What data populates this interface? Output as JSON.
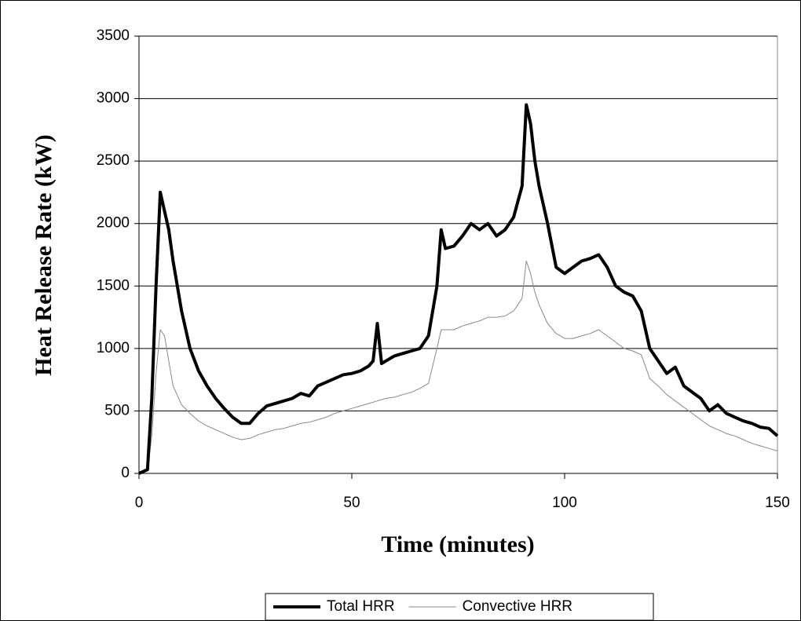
{
  "chart_data": {
    "type": "line",
    "xlabel": "Time (minutes)",
    "ylabel": "Heat Release Rate (kW)",
    "x": [
      0,
      2,
      3,
      4,
      5,
      6,
      7,
      8,
      10,
      12,
      14,
      16,
      18,
      20,
      22,
      24,
      26,
      28,
      30,
      32,
      34,
      36,
      38,
      40,
      42,
      44,
      46,
      48,
      50,
      52,
      54,
      55,
      56,
      57,
      58,
      60,
      62,
      64,
      66,
      68,
      70,
      71,
      72,
      74,
      76,
      78,
      80,
      82,
      84,
      86,
      88,
      90,
      91,
      92,
      93,
      94,
      96,
      98,
      100,
      102,
      104,
      106,
      108,
      110,
      112,
      114,
      116,
      118,
      120,
      122,
      124,
      126,
      128,
      130,
      132,
      134,
      136,
      138,
      140,
      142,
      144,
      146,
      148,
      150
    ],
    "series": [
      {
        "name": "Total HRR",
        "color": "#000000",
        "width": 4,
        "values": [
          0,
          30,
          600,
          1500,
          2250,
          2100,
          1950,
          1700,
          1300,
          1000,
          820,
          700,
          600,
          520,
          450,
          400,
          400,
          480,
          540,
          560,
          580,
          600,
          640,
          620,
          700,
          730,
          760,
          790,
          800,
          820,
          860,
          900,
          1200,
          880,
          900,
          940,
          960,
          980,
          1000,
          1100,
          1500,
          1950,
          1800,
          1820,
          1900,
          2000,
          1950,
          2000,
          1900,
          1950,
          2050,
          2300,
          2950,
          2800,
          2500,
          2300,
          2000,
          1650,
          1600,
          1650,
          1700,
          1720,
          1750,
          1650,
          1500,
          1450,
          1420,
          1300,
          1000,
          900,
          800,
          850,
          700,
          650,
          600,
          500,
          550,
          480,
          450,
          420,
          400,
          370,
          360,
          300
        ]
      },
      {
        "name": "Convective HRR",
        "color": "#888888",
        "width": 1,
        "values": [
          0,
          20,
          300,
          800,
          1150,
          1100,
          900,
          700,
          550,
          480,
          420,
          380,
          350,
          320,
          290,
          270,
          280,
          310,
          330,
          350,
          360,
          380,
          400,
          410,
          430,
          450,
          480,
          500,
          520,
          540,
          560,
          570,
          580,
          590,
          600,
          610,
          630,
          650,
          680,
          720,
          1000,
          1150,
          1150,
          1150,
          1180,
          1200,
          1220,
          1250,
          1250,
          1260,
          1300,
          1400,
          1700,
          1600,
          1450,
          1350,
          1200,
          1120,
          1080,
          1080,
          1100,
          1120,
          1150,
          1100,
          1050,
          1000,
          980,
          950,
          760,
          700,
          630,
          580,
          530,
          480,
          430,
          380,
          350,
          320,
          300,
          270,
          240,
          220,
          200,
          180
        ]
      }
    ],
    "xlim": [
      0,
      150
    ],
    "xticks": [
      0,
      50,
      100,
      150
    ],
    "ylim": [
      0,
      3500
    ],
    "yticks": [
      0,
      500,
      1000,
      1500,
      2000,
      2500,
      3000,
      3500
    ],
    "grid": true,
    "legend": "bottom"
  }
}
